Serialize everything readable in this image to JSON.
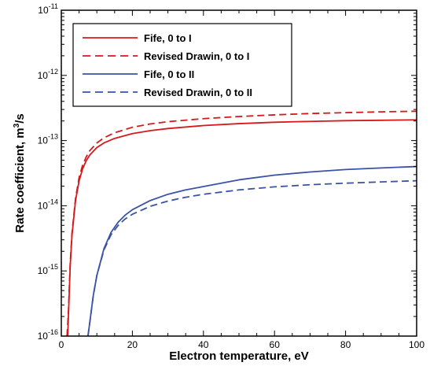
{
  "chart_data": {
    "type": "line",
    "title": "",
    "xlabel": "Electron temperature, eV",
    "ylabel_text": "Rate coefficient, m",
    "ylabel_sup": "3",
    "ylabel_tail": "/s",
    "xlim": [
      0,
      100
    ],
    "ylim": [
      1e-16,
      1e-11
    ],
    "y_scale": "log",
    "x_ticks": [
      0,
      20,
      40,
      60,
      80,
      100
    ],
    "x_tick_labels": [
      "0",
      "20",
      "40",
      "60",
      "80",
      "100"
    ],
    "y_ticks": [
      {
        "value": 1e-16,
        "base": "10",
        "exp": "-16"
      },
      {
        "value": 1e-15,
        "base": "10",
        "exp": "-15"
      },
      {
        "value": 1e-14,
        "base": "10",
        "exp": "-14"
      },
      {
        "value": 1e-13,
        "base": "10",
        "exp": "-13"
      },
      {
        "value": 1e-12,
        "base": "10",
        "exp": "-12"
      },
      {
        "value": 1e-11,
        "base": "10",
        "exp": "-11"
      }
    ],
    "grid": false,
    "legend_position": "top-left",
    "series": [
      {
        "name": "Fife, 0 to I",
        "color": "#d7191c",
        "dash": "solid",
        "x": [
          1.8,
          2,
          2.5,
          3,
          4,
          5,
          6,
          7,
          8,
          10,
          12,
          15,
          20,
          25,
          30,
          40,
          50,
          60,
          70,
          80,
          90,
          100
        ],
        "y": [
          1e-16,
          2e-16,
          1.2e-15,
          3.5e-15,
          1.2e-14,
          2.4e-14,
          3.7e-14,
          4.9e-14,
          6e-14,
          7.8e-14,
          9.2e-14,
          1.08e-13,
          1.28e-13,
          1.42e-13,
          1.53e-13,
          1.7e-13,
          1.82e-13,
          1.91e-13,
          1.97e-13,
          2.02e-13,
          2.05e-13,
          2.08e-13
        ]
      },
      {
        "name": "Revised Drawin, 0 to I",
        "color": "#d7191c",
        "dash": "dashed",
        "x": [
          1.6,
          2,
          2.5,
          3,
          4,
          5,
          6,
          7,
          8,
          10,
          12,
          15,
          20,
          25,
          30,
          40,
          50,
          60,
          70,
          80,
          90,
          100
        ],
        "y": [
          1e-16,
          2.4e-16,
          1.3e-15,
          3.8e-15,
          1.3e-14,
          2.7e-14,
          4.2e-14,
          5.6e-14,
          7e-14,
          9.2e-14,
          1.1e-13,
          1.32e-13,
          1.6e-13,
          1.8e-13,
          1.95e-13,
          2.17e-13,
          2.34e-13,
          2.48e-13,
          2.6e-13,
          2.68e-13,
          2.76e-13,
          2.82e-13
        ]
      },
      {
        "name": "Fife, 0 to II",
        "color": "#3a53a4",
        "dash": "solid",
        "x": [
          7.5,
          8,
          9,
          10,
          12,
          14,
          16,
          18,
          20,
          25,
          30,
          35,
          40,
          50,
          60,
          70,
          80,
          90,
          100
        ],
        "y": [
          1e-16,
          1.6e-16,
          4.2e-16,
          8.5e-16,
          2.2e-15,
          3.9e-15,
          5.6e-15,
          7.2e-15,
          8.7e-15,
          1.2e-14,
          1.5e-14,
          1.75e-14,
          1.97e-14,
          2.5e-14,
          2.95e-14,
          3.3e-14,
          3.6e-14,
          3.8e-14,
          4e-14
        ]
      },
      {
        "name": "Revised Drawin, 0 to II",
        "color": "#3a53a4",
        "dash": "dashed",
        "x": [
          7.5,
          8,
          9,
          10,
          12,
          14,
          16,
          18,
          20,
          25,
          30,
          35,
          40,
          50,
          60,
          70,
          80,
          90,
          100
        ],
        "y": [
          1e-16,
          1.6e-16,
          4.2e-16,
          8.5e-16,
          2.1e-15,
          3.6e-15,
          5e-15,
          6.3e-15,
          7.4e-15,
          9.8e-15,
          1.18e-14,
          1.35e-14,
          1.5e-14,
          1.75e-14,
          1.95e-14,
          2.1e-14,
          2.22e-14,
          2.32e-14,
          2.42e-14
        ]
      }
    ]
  }
}
